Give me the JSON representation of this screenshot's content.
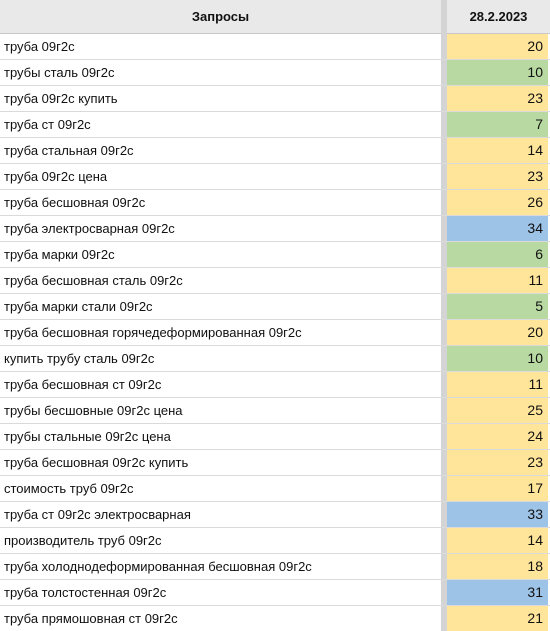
{
  "header": {
    "queries_label": "Запросы",
    "date_label": "28.2.2023"
  },
  "colors": {
    "yellow": "#fee59a",
    "green": "#b8daa2",
    "blue": "#9dc3e6"
  },
  "rows": [
    {
      "query": "труба 09г2с",
      "value": "20",
      "color": "yellow"
    },
    {
      "query": "трубы сталь 09г2с",
      "value": "10",
      "color": "green"
    },
    {
      "query": "труба 09г2с купить",
      "value": "23",
      "color": "yellow"
    },
    {
      "query": "труба ст 09г2с",
      "value": "7",
      "color": "green"
    },
    {
      "query": "труба стальная 09г2с",
      "value": "14",
      "color": "yellow"
    },
    {
      "query": "труба 09г2с цена",
      "value": "23",
      "color": "yellow"
    },
    {
      "query": "труба бесшовная 09г2с",
      "value": "26",
      "color": "yellow"
    },
    {
      "query": "труба электросварная 09г2с",
      "value": "34",
      "color": "blue"
    },
    {
      "query": "труба марки 09г2с",
      "value": "6",
      "color": "green"
    },
    {
      "query": "труба бесшовная сталь 09г2с",
      "value": "11",
      "color": "yellow"
    },
    {
      "query": "труба марки стали 09г2с",
      "value": "5",
      "color": "green"
    },
    {
      "query": "труба бесшовная горячедеформированная 09г2с",
      "value": "20",
      "color": "yellow"
    },
    {
      "query": "купить трубу сталь 09г2с",
      "value": "10",
      "color": "green"
    },
    {
      "query": "труба бесшовная ст 09г2с",
      "value": "11",
      "color": "yellow"
    },
    {
      "query": "трубы бесшовные 09г2с цена",
      "value": "25",
      "color": "yellow"
    },
    {
      "query": "трубы стальные 09г2с цена",
      "value": "24",
      "color": "yellow"
    },
    {
      "query": "труба бесшовная 09г2с купить",
      "value": "23",
      "color": "yellow"
    },
    {
      "query": "стоимость труб 09г2с",
      "value": "17",
      "color": "yellow"
    },
    {
      "query": "труба ст 09г2с электросварная",
      "value": "33",
      "color": "blue"
    },
    {
      "query": "производитель труб 09г2с",
      "value": "14",
      "color": "yellow"
    },
    {
      "query": "труба холоднодеформированная бесшовная 09г2с",
      "value": "18",
      "color": "yellow"
    },
    {
      "query": "труба толстостенная 09г2с",
      "value": "31",
      "color": "blue"
    },
    {
      "query": "труба прямошовная ст 09г2с",
      "value": "21",
      "color": "yellow"
    }
  ]
}
